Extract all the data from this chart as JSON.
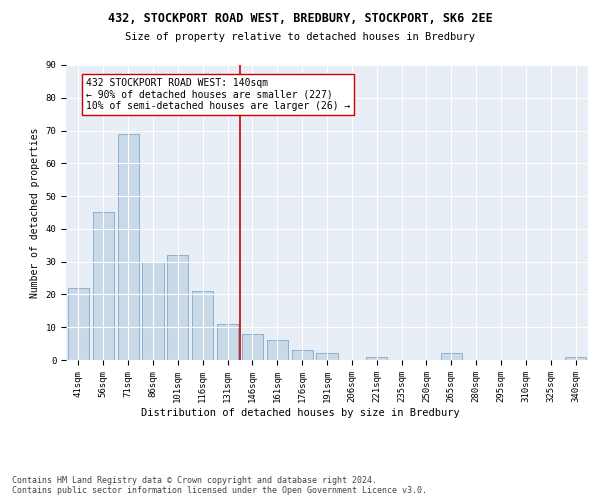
{
  "title1": "432, STOCKPORT ROAD WEST, BREDBURY, STOCKPORT, SK6 2EE",
  "title2": "Size of property relative to detached houses in Bredbury",
  "xlabel": "Distribution of detached houses by size in Bredbury",
  "ylabel": "Number of detached properties",
  "categories": [
    "41sqm",
    "56sqm",
    "71sqm",
    "86sqm",
    "101sqm",
    "116sqm",
    "131sqm",
    "146sqm",
    "161sqm",
    "176sqm",
    "191sqm",
    "206sqm",
    "221sqm",
    "235sqm",
    "250sqm",
    "265sqm",
    "280sqm",
    "295sqm",
    "310sqm",
    "325sqm",
    "340sqm"
  ],
  "values": [
    22,
    45,
    69,
    30,
    32,
    21,
    11,
    8,
    6,
    3,
    2,
    0,
    1,
    0,
    0,
    2,
    0,
    0,
    0,
    0,
    1
  ],
  "bar_color": "#c9d9e8",
  "bar_edge_color": "#7fa8c9",
  "vline_x": 6.5,
  "vline_color": "#cc0000",
  "annotation_line1": "432 STOCKPORT ROAD WEST: 140sqm",
  "annotation_line2": "← 90% of detached houses are smaller (227)",
  "annotation_line3": "10% of semi-detached houses are larger (26) →",
  "annotation_box_color": "#ffffff",
  "annotation_box_edge": "#cc0000",
  "ylim": [
    0,
    90
  ],
  "yticks": [
    0,
    10,
    20,
    30,
    40,
    50,
    60,
    70,
    80,
    90
  ],
  "bg_color": "#e8eef5",
  "footer_text": "Contains HM Land Registry data © Crown copyright and database right 2024.\nContains public sector information licensed under the Open Government Licence v3.0.",
  "title1_fontsize": 8.5,
  "title2_fontsize": 7.5,
  "xlabel_fontsize": 7.5,
  "ylabel_fontsize": 7.0,
  "tick_fontsize": 6.5,
  "annotation_fontsize": 7.0,
  "footer_fontsize": 6.0
}
